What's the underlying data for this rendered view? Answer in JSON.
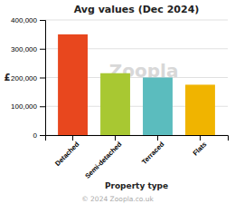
{
  "chart_data": {
    "type": "bar",
    "title": "Avg values (Dec 2024)",
    "categories": [
      "Detached",
      "Semi-detached",
      "Terraced",
      "Flats"
    ],
    "values": [
      350000,
      215000,
      200000,
      175000
    ],
    "colors": [
      "#e8471e",
      "#a8c832",
      "#5bbcbe",
      "#f0b400"
    ],
    "ylabel": "£",
    "xlabel": "Property type",
    "ylim": [
      0,
      400000
    ],
    "yticks": [
      0,
      {
        "value": 100000,
        "label": "100,000"
      },
      {
        "value": 200000,
        "label": "200,000"
      },
      {
        "value": 300000,
        "label": "300,000"
      },
      {
        "value": 400000,
        "label": "400,000"
      }
    ],
    "grid": true,
    "annotations": [
      "Zoopla",
      "© 2024 Zoopla.co.uk"
    ]
  }
}
